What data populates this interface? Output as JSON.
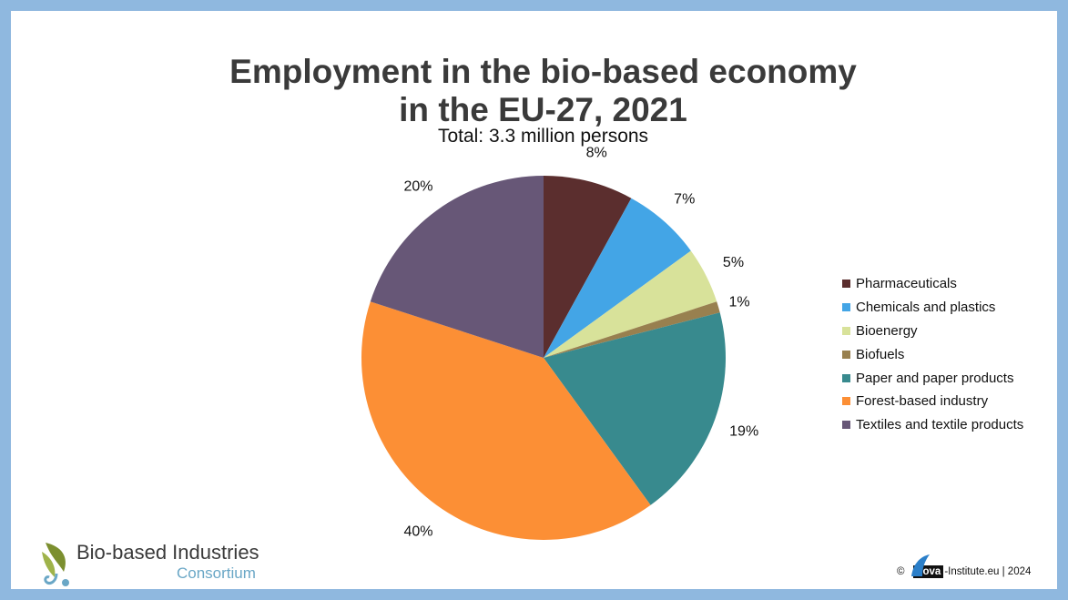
{
  "title_line1": "Employment in the bio-based economy",
  "title_line2": "in the EU-27, 2021",
  "subtitle": "Total: 3.3 million persons",
  "chart_data": {
    "type": "pie",
    "title": "Employment in the bio-based economy in the EU-27, 2021",
    "subtitle": "Total: 3.3 million persons",
    "unit": "%",
    "categories": [
      "Pharmaceuticals",
      "Chemicals and plastics",
      "Bioenergy",
      "Biofuels",
      "Paper and paper products",
      "Forest-based industry",
      "Textiles and textile products"
    ],
    "values": [
      8,
      7,
      5,
      1,
      19,
      40,
      20
    ],
    "labels": [
      "8%",
      "7%",
      "5%",
      "1%",
      "19%",
      "40%",
      "20%"
    ],
    "colors": [
      "#5b2e2e",
      "#43a5e6",
      "#d8e29a",
      "#98804f",
      "#388a8e",
      "#fc8f35",
      "#675777"
    ],
    "legend_position": "right"
  },
  "logos": {
    "bbi_name": "Bio-based Industries",
    "bbi_sub": "Consortium",
    "copyright_symbol": "©",
    "nova_box": "nova",
    "copyright_rest": "-Institute.eu | 2024"
  }
}
